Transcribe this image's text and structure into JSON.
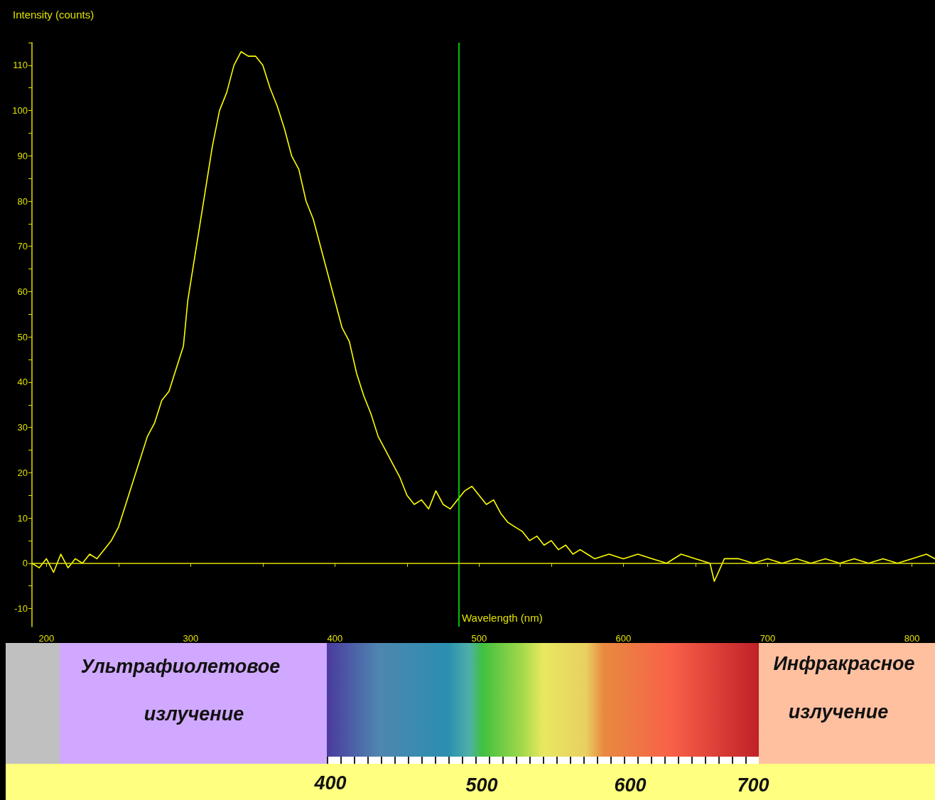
{
  "chart_data": {
    "type": "line",
    "xlabel": "Wavelength (nm)",
    "ylabel": "Intensity (counts)",
    "x": [
      190,
      195,
      200,
      205,
      210,
      215,
      220,
      225,
      230,
      235,
      240,
      245,
      250,
      255,
      260,
      265,
      270,
      275,
      280,
      285,
      290,
      295,
      298,
      300,
      305,
      310,
      315,
      320,
      325,
      330,
      335,
      340,
      345,
      350,
      355,
      360,
      365,
      370,
      375,
      380,
      385,
      390,
      395,
      400,
      405,
      410,
      415,
      420,
      425,
      430,
      435,
      440,
      445,
      450,
      455,
      460,
      465,
      470,
      475,
      480,
      485,
      490,
      495,
      500,
      505,
      510,
      515,
      520,
      525,
      530,
      535,
      540,
      545,
      550,
      555,
      560,
      565,
      570,
      575,
      580,
      590,
      600,
      610,
      620,
      630,
      640,
      650,
      660,
      663,
      670,
      680,
      690,
      700,
      710,
      720,
      730,
      740,
      750,
      760,
      770,
      780,
      790,
      800,
      810,
      816
    ],
    "series": [
      {
        "color": "#ffff00",
        "values": [
          0,
          -1,
          1,
          -2,
          2,
          -1,
          1,
          0,
          2,
          1,
          3,
          5,
          8,
          13,
          18,
          23,
          28,
          31,
          36,
          38,
          43,
          48,
          58,
          62,
          72,
          82,
          92,
          100,
          104,
          110,
          113,
          112,
          112,
          110,
          105,
          101,
          96,
          90,
          87,
          80,
          76,
          70,
          64,
          58,
          52,
          49,
          42,
          37,
          33,
          28,
          25,
          22,
          19,
          15,
          13,
          14,
          12,
          16,
          13,
          12,
          14,
          16,
          17,
          15,
          13,
          14,
          11,
          9,
          8,
          7,
          5,
          6,
          4,
          5,
          3,
          4,
          2,
          3,
          2,
          1,
          2,
          1,
          2,
          1,
          0,
          2,
          1,
          0,
          -4,
          1,
          1,
          0,
          1,
          0,
          1,
          0,
          1,
          0,
          1,
          0,
          1,
          0,
          1,
          2,
          1
        ]
      }
    ],
    "xlim": [
      190,
      816
    ],
    "xticks": [
      200,
      {
        "value": 250,
        "label": null
      },
      300,
      {
        "value": 350,
        "label": null
      },
      400,
      {
        "value": 450,
        "label": null
      },
      500,
      {
        "value": 550,
        "label": null
      },
      600,
      {
        "value": 650,
        "label": null
      },
      700,
      {
        "value": 750,
        "label": null
      },
      800
    ],
    "ylim": [
      -14,
      115
    ],
    "yticks": [
      -10,
      {
        "value": -5,
        "label": null
      },
      0,
      {
        "value": 5,
        "label": null
      },
      10,
      {
        "value": 15,
        "label": null
      },
      20,
      {
        "value": 25,
        "label": null
      },
      30,
      {
        "value": 35,
        "label": null
      },
      40,
      {
        "value": 45,
        "label": null
      },
      50,
      {
        "value": 55,
        "label": null
      },
      60,
      {
        "value": 65,
        "label": null
      },
      70,
      {
        "value": 75,
        "label": null
      },
      80,
      {
        "value": 85,
        "label": null
      },
      90,
      {
        "value": 95,
        "label": null
      },
      100,
      {
        "value": 105,
        "label": null
      },
      110,
      {
        "value": 115,
        "label": null
      }
    ],
    "ref_lines": [
      {
        "axis": "x",
        "value": 486,
        "color": "#00ff00"
      },
      {
        "axis": "y",
        "value": 0,
        "color": "#e0e000"
      }
    ],
    "marker": "none",
    "line_style": "solid",
    "grid": false,
    "annotations": [
      "Ультрафиолетовое",
      "излучение",
      "Инфракрасное",
      "излучение",
      "400",
      "500",
      "600",
      "700"
    ]
  }
}
